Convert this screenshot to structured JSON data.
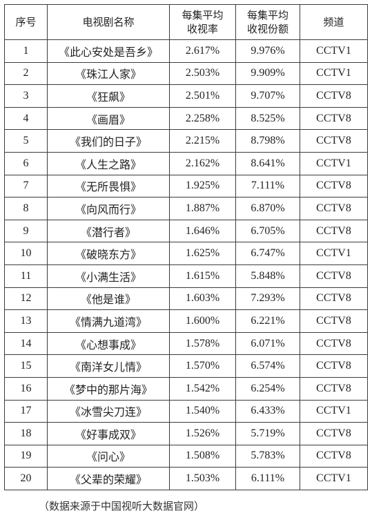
{
  "headers": {
    "rank": "序号",
    "name": "电视剧名称",
    "rating_line1": "每集平均",
    "rating_line2": "收视率",
    "share_line1": "每集平均",
    "share_line2": "收视份额",
    "channel": "频道"
  },
  "rows": [
    {
      "rank": "1",
      "name": "《此心安处是吾乡》",
      "rating": "2.617%",
      "share": "9.976%",
      "channel": "CCTV1"
    },
    {
      "rank": "2",
      "name": "《珠江人家》",
      "rating": "2.503%",
      "share": "9.909%",
      "channel": "CCTV1"
    },
    {
      "rank": "3",
      "name": "《狂飙》",
      "rating": "2.501%",
      "share": "9.707%",
      "channel": "CCTV8"
    },
    {
      "rank": "4",
      "name": "《画眉》",
      "rating": "2.258%",
      "share": "8.525%",
      "channel": "CCTV8"
    },
    {
      "rank": "5",
      "name": "《我们的日子》",
      "rating": "2.215%",
      "share": "8.798%",
      "channel": "CCTV8"
    },
    {
      "rank": "6",
      "name": "《人生之路》",
      "rating": "2.162%",
      "share": "8.641%",
      "channel": "CCTV1"
    },
    {
      "rank": "7",
      "name": "《无所畏惧》",
      "rating": "1.925%",
      "share": "7.111%",
      "channel": "CCTV8"
    },
    {
      "rank": "8",
      "name": "《向风而行》",
      "rating": "1.887%",
      "share": "6.870%",
      "channel": "CCTV8"
    },
    {
      "rank": "9",
      "name": "《潜行者》",
      "rating": "1.646%",
      "share": "6.705%",
      "channel": "CCTV8"
    },
    {
      "rank": "10",
      "name": "《破晓东方》",
      "rating": "1.625%",
      "share": "6.747%",
      "channel": "CCTV1"
    },
    {
      "rank": "11",
      "name": "《小满生活》",
      "rating": "1.615%",
      "share": "5.848%",
      "channel": "CCTV8"
    },
    {
      "rank": "12",
      "name": "《他是谁》",
      "rating": "1.603%",
      "share": "7.293%",
      "channel": "CCTV8"
    },
    {
      "rank": "13",
      "name": "《情满九道湾》",
      "rating": "1.600%",
      "share": "6.221%",
      "channel": "CCTV8"
    },
    {
      "rank": "14",
      "name": "《心想事成》",
      "rating": "1.578%",
      "share": "6.071%",
      "channel": "CCTV8"
    },
    {
      "rank": "15",
      "name": "《南洋女儿情》",
      "rating": "1.570%",
      "share": "6.574%",
      "channel": "CCTV8"
    },
    {
      "rank": "16",
      "name": "《梦中的那片海》",
      "rating": "1.542%",
      "share": "6.254%",
      "channel": "CCTV8"
    },
    {
      "rank": "17",
      "name": "《冰雪尖刀连》",
      "rating": "1.540%",
      "share": "6.433%",
      "channel": "CCTV1"
    },
    {
      "rank": "18",
      "name": "《好事成双》",
      "rating": "1.526%",
      "share": "5.719%",
      "channel": "CCTV8"
    },
    {
      "rank": "19",
      "name": "《问心》",
      "rating": "1.508%",
      "share": "5.783%",
      "channel": "CCTV8"
    },
    {
      "rank": "20",
      "name": "《父辈的荣耀》",
      "rating": "1.503%",
      "share": "6.111%",
      "channel": "CCTV1"
    }
  ],
  "footnote": "（数据来源于中国视听大数据官网）"
}
